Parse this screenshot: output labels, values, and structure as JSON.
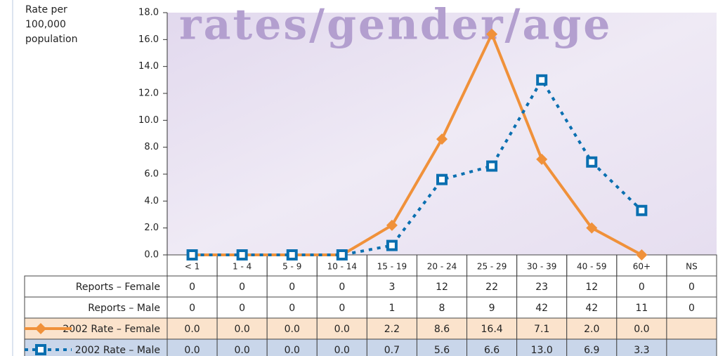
{
  "chart_data": {
    "type": "line",
    "title": "rates/gender/age",
    "y_label": "Rate per 100,000 population",
    "categories": [
      "< 1",
      "1 - 4",
      "5 - 9",
      "10 - 14",
      "15 - 19",
      "20 - 24",
      "25 - 29",
      "30 - 39",
      "40 - 59",
      "60+",
      "NS"
    ],
    "ylim": [
      0,
      18
    ],
    "yticks": [
      {
        "value": 0,
        "label": "0.0"
      },
      {
        "value": 2,
        "label": "2.0"
      },
      {
        "value": 4,
        "label": "4.0"
      },
      {
        "value": 6,
        "label": "6.0"
      },
      {
        "value": 8,
        "label": "8.0"
      },
      {
        "value": 10,
        "label": "10.0"
      },
      {
        "value": 12,
        "label": "12.0"
      },
      {
        "value": 14,
        "label": "14.0"
      },
      {
        "value": 16,
        "label": "16.0"
      },
      {
        "value": 18,
        "label": "18.0"
      }
    ],
    "series": [
      {
        "name": "2002 Rate – Female",
        "color": "#f0913a",
        "marker": "diamond",
        "dash": "solid",
        "values": [
          0,
          0,
          0,
          0,
          2.2,
          8.6,
          16.4,
          7.1,
          2.0,
          0.0,
          null
        ],
        "value_labels": [
          "0.0",
          "0.0",
          "0.0",
          "0.0",
          "2.2",
          "8.6",
          "16.4",
          "7.1",
          "2.0",
          "0.0",
          null
        ]
      },
      {
        "name": "2002 Rate – Male",
        "color": "#0a6fb0",
        "marker": "square",
        "dash": "dotted",
        "values": [
          0,
          0,
          0,
          0,
          0.7,
          5.6,
          6.6,
          13.0,
          6.9,
          3.3,
          null
        ],
        "value_labels": [
          "0.0",
          "0.0",
          "0.0",
          "0.0",
          "0.7",
          "5.6",
          "6.6",
          "13.0",
          "6.9",
          "3.3",
          null
        ]
      }
    ],
    "table": [
      {
        "name": "Reports – Female",
        "values": [
          0,
          0,
          0,
          0,
          3,
          12,
          22,
          23,
          12,
          0,
          0
        ]
      },
      {
        "name": "Reports – Male",
        "values": [
          0,
          0,
          0,
          0,
          1,
          8,
          9,
          42,
          42,
          11,
          0
        ]
      }
    ]
  }
}
